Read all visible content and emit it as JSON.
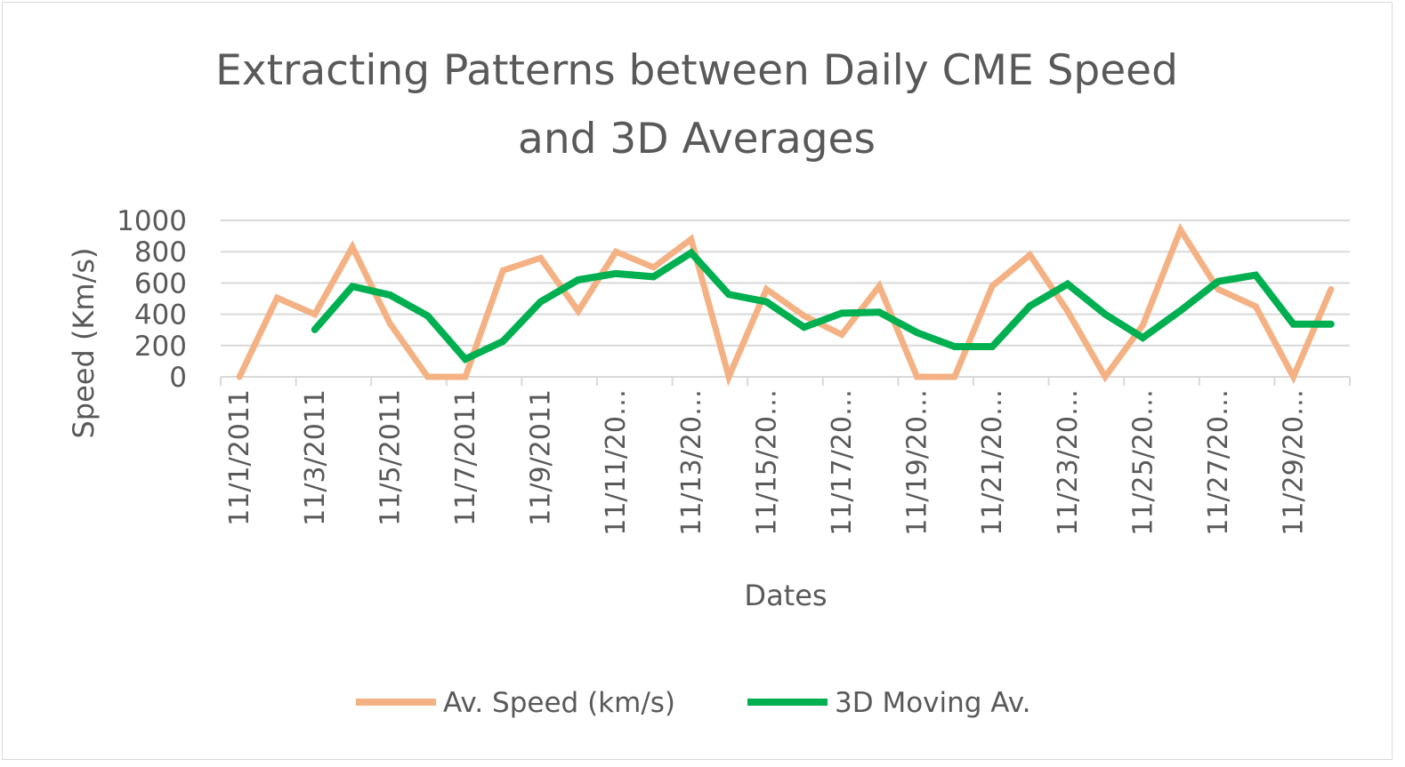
{
  "chart_data": {
    "type": "line",
    "title_lines": [
      "Extracting Patterns between Daily CME Speed",
      "and 3D Averages"
    ],
    "xlabel": "Dates",
    "ylabel": "Speed (Km/s)",
    "ylim": [
      0,
      1000
    ],
    "yticks": [
      "0",
      "200",
      "400",
      "600",
      "800",
      "1000"
    ],
    "grid": true,
    "legend_position": "bottom",
    "categories": [
      "11/1/2011",
      "11/2/2011",
      "11/3/2011",
      "11/4/2011",
      "11/5/2011",
      "11/6/2011",
      "11/7/2011",
      "11/8/2011",
      "11/9/2011",
      "11/10/2011",
      "11/11/2011",
      "11/12/2011",
      "11/13/2011",
      "11/14/2011",
      "11/15/2011",
      "11/16/2011",
      "11/17/2011",
      "11/18/2011",
      "11/19/2011",
      "11/20/2011",
      "11/21/2011",
      "11/22/2011",
      "11/23/2011",
      "11/24/2011",
      "11/25/2011",
      "11/26/2011",
      "11/27/2011",
      "11/28/2011",
      "11/29/2011",
      "11/30/2011"
    ],
    "tick_labels": [
      "11/1/2011",
      "11/3/2011",
      "11/5/2011",
      "11/7/2011",
      "11/9/2011",
      "11/11/20…",
      "11/13/20…",
      "11/15/20…",
      "11/17/20…",
      "11/19/20…",
      "11/21/20…",
      "11/23/20…",
      "11/25/20…",
      "11/27/20…",
      "11/29/20…"
    ],
    "series": [
      {
        "name": "Av. Speed (km/s)",
        "color": "#f4b183",
        "values": [
          0,
          505,
          400,
          830,
          340,
          0,
          0,
          680,
          760,
          420,
          800,
          700,
          880,
          0,
          560,
          390,
          270,
          580,
          0,
          0,
          580,
          780,
          420,
          0,
          330,
          940,
          560,
          450,
          0,
          560
        ]
      },
      {
        "name": "3D Moving Av.",
        "color": "#00b050",
        "values": [
          null,
          null,
          302,
          578,
          523,
          390,
          113,
          227,
          480,
          620,
          660,
          640,
          793,
          527,
          480,
          317,
          407,
          413,
          283,
          193,
          193,
          453,
          593,
          400,
          250,
          423,
          610,
          650,
          337,
          337
        ]
      }
    ]
  }
}
